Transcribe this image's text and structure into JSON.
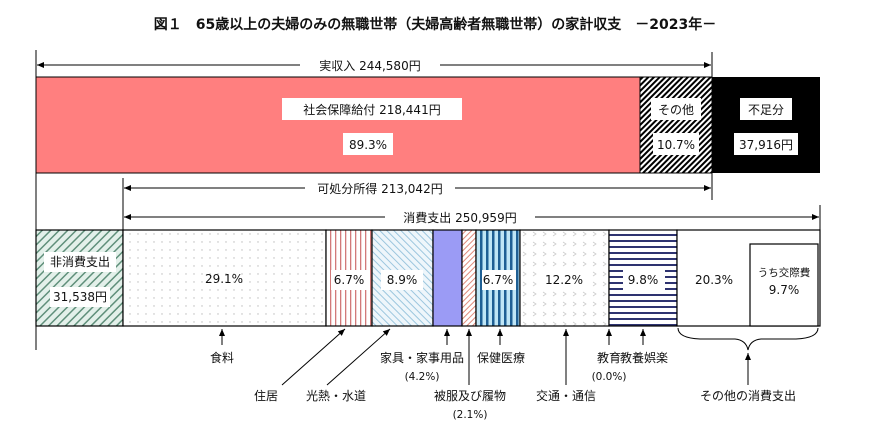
{
  "title": "図１　65歳以上の夫婦のみの無職世帯（夫婦高齢者無職世帯）の家計収支　－2023年－",
  "income": {
    "total_label": "実収入  244,580円",
    "disposable_label": "可処分所得  213,042円",
    "consumption_label": "消費支出  250,959円",
    "segments": [
      {
        "name": "社会保障給付",
        "label": "社会保障給付  218,441円",
        "pct": "89.3%",
        "color": "#ff7f7f"
      },
      {
        "name": "その他",
        "label": "その他",
        "pct": "10.7%",
        "color": "hatch"
      },
      {
        "name": "不足分",
        "label": "不足分",
        "amount": "37,916円",
        "color": "#000000"
      }
    ]
  },
  "expenditure": {
    "non_consumption": {
      "label": "非消費支出",
      "amount": "31,538円"
    },
    "items": [
      {
        "name": "食料",
        "pct": "29.1%"
      },
      {
        "name": "住居",
        "pct": "6.7%"
      },
      {
        "name": "光熱・水道",
        "pct": "8.9%"
      },
      {
        "name": "家具・家事用品",
        "pct": "(4.2%)"
      },
      {
        "name": "被服及び履物",
        "pct": "(2.1%)"
      },
      {
        "name": "保健医療",
        "pct": "6.7%"
      },
      {
        "name": "交通・通信",
        "pct": "12.2%"
      },
      {
        "name": "教育",
        "pct": "(0.0%)"
      },
      {
        "name": "教養娯楽",
        "pct": "9.8%"
      },
      {
        "name": "その他の消費支出",
        "pct": "20.3%"
      }
    ],
    "social_expense": {
      "label": "うち交際費",
      "pct": "9.7%"
    }
  }
}
